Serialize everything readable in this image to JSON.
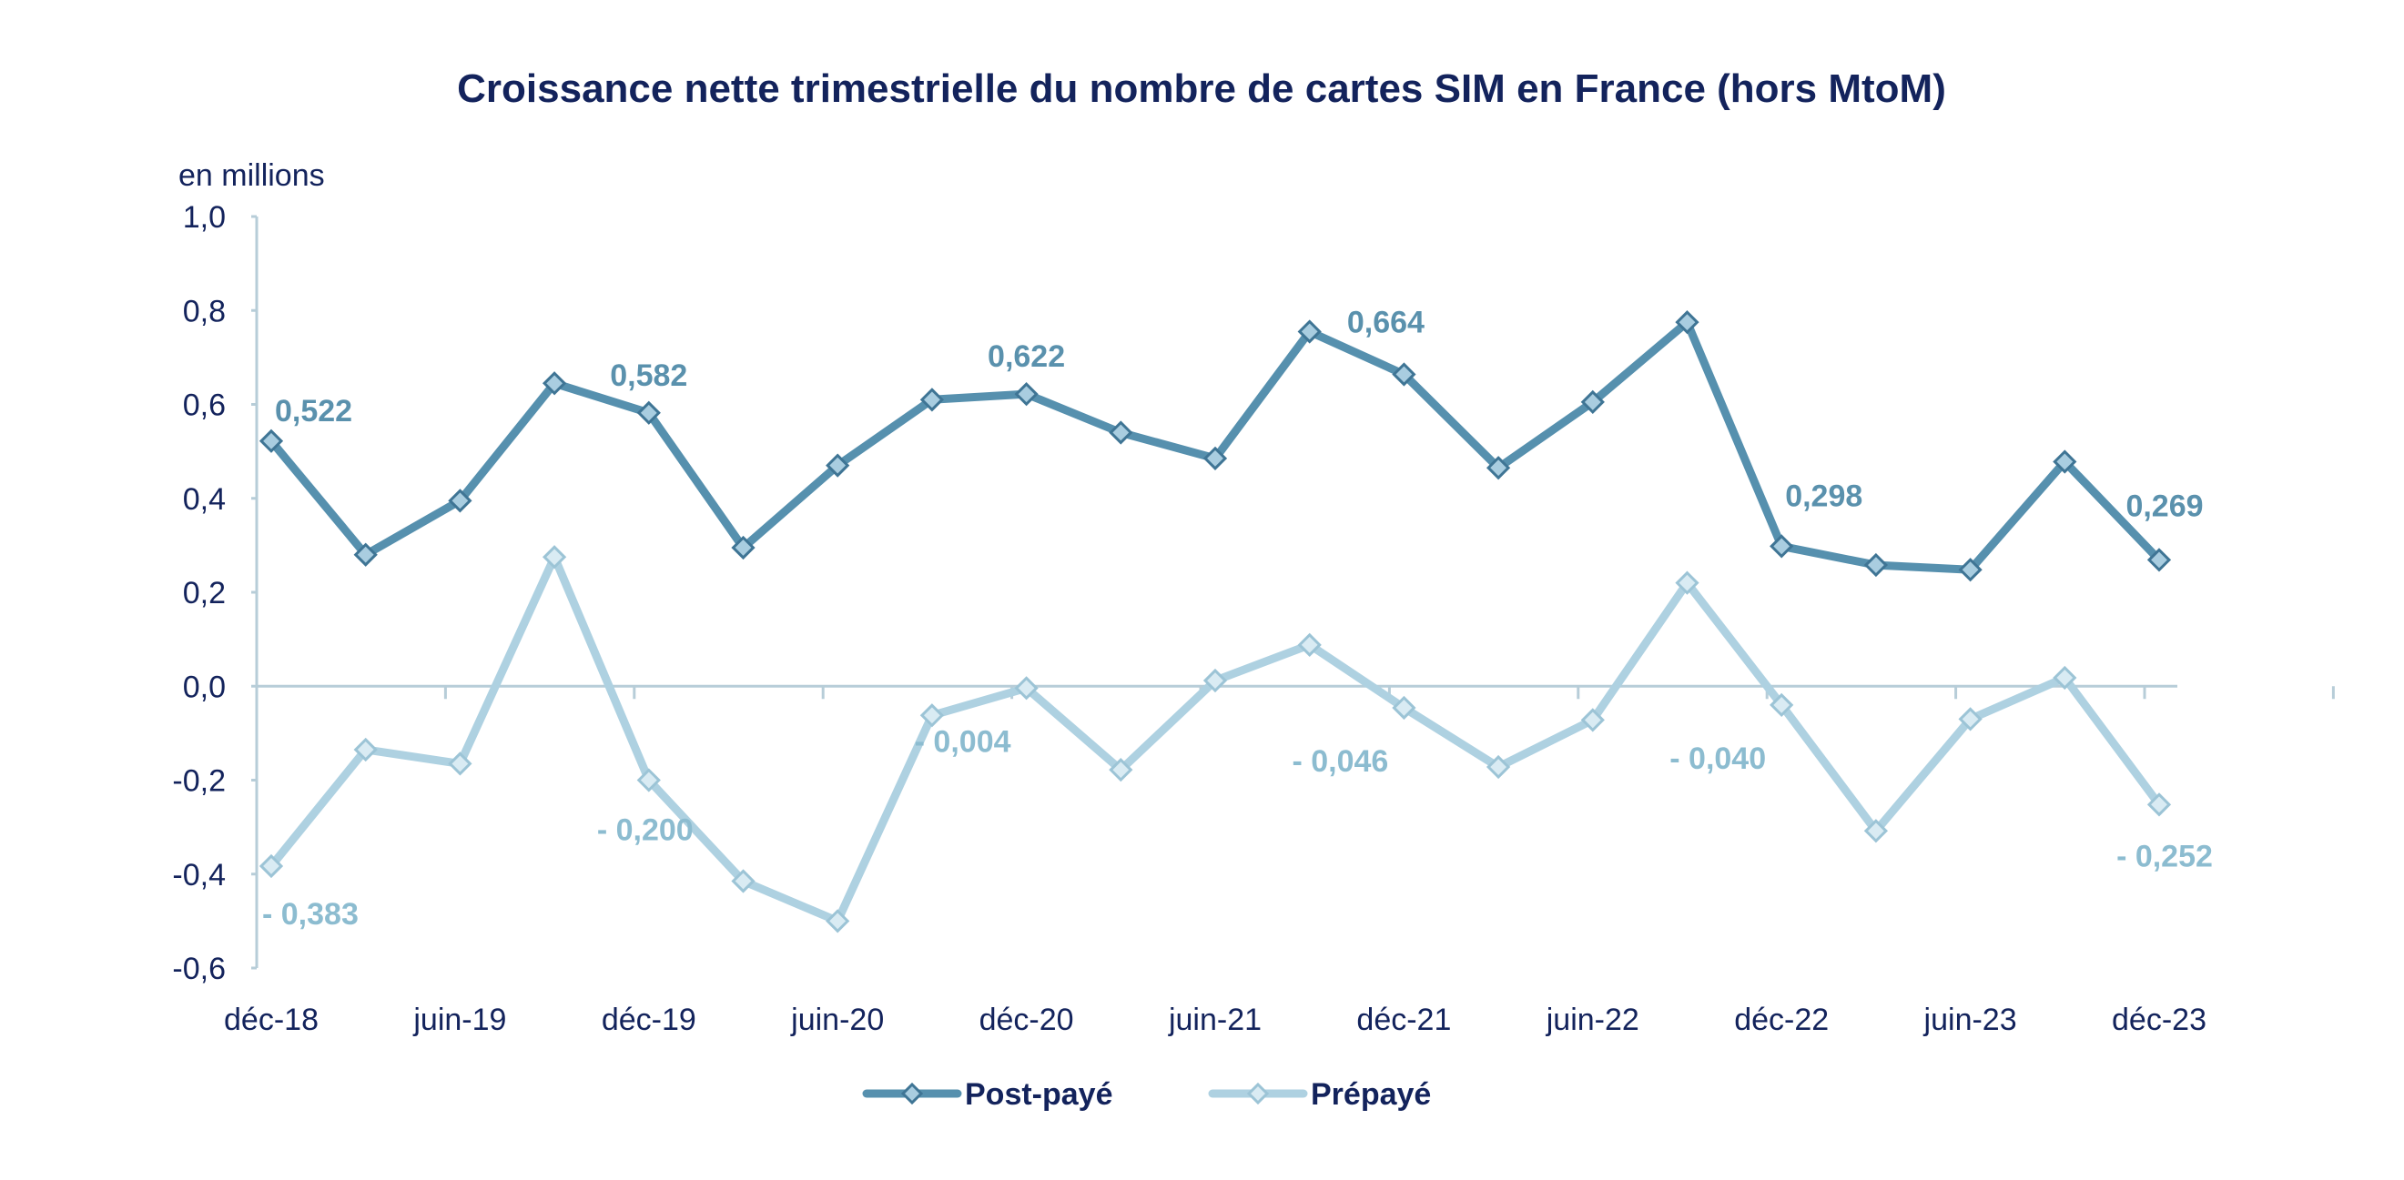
{
  "chart_data": {
    "type": "line",
    "title": "Croissance nette trimestrielle du nombre de cartes SIM en France (hors MtoM)",
    "unit_label": "en millions",
    "ylim": [
      -0.6,
      1.0
    ],
    "yticks": [
      "1,0",
      "0,8",
      "0,6",
      "0,4",
      "0,2",
      "0,0",
      "-0,2",
      "-0,4",
      "-0,6"
    ],
    "ytick_values": [
      1.0,
      0.8,
      0.6,
      0.4,
      0.2,
      0.0,
      -0.2,
      -0.4,
      -0.6
    ],
    "x": [
      "déc-18",
      "mars-19",
      "juin-19",
      "sept-19",
      "déc-19",
      "mars-20",
      "juin-20",
      "sept-20",
      "déc-20",
      "mars-21",
      "juin-21",
      "sept-21",
      "déc-21",
      "mars-22",
      "juin-22",
      "sept-22",
      "déc-22",
      "mars-23",
      "juin-23",
      "sept-23",
      "déc-23"
    ],
    "xtick_labels": [
      "déc-18",
      "juin-19",
      "déc-19",
      "juin-20",
      "déc-20",
      "juin-21",
      "déc-21",
      "juin-22",
      "déc-22",
      "juin-23",
      "déc-23"
    ],
    "xtick_indices": [
      0,
      2,
      4,
      6,
      8,
      10,
      12,
      14,
      16,
      18,
      20
    ],
    "grid": false,
    "legend_position": "bottom",
    "series": [
      {
        "name": "Post-payé",
        "color": "#5690ae",
        "values": [
          0.522,
          0.28,
          0.395,
          0.645,
          0.582,
          0.295,
          0.47,
          0.61,
          0.622,
          0.54,
          0.485,
          0.755,
          0.664,
          0.465,
          0.605,
          0.775,
          0.298,
          0.258,
          0.248,
          0.478,
          0.269
        ],
        "labels": [
          {
            "index": 0,
            "text": "0,522",
            "pos": "above-right"
          },
          {
            "index": 4,
            "text": "0,582",
            "pos": "above"
          },
          {
            "index": 8,
            "text": "0,622",
            "pos": "above"
          },
          {
            "index": 12,
            "text": "0,664",
            "pos": "above-left"
          },
          {
            "index": 16,
            "text": "0,298",
            "pos": "above-right"
          },
          {
            "index": 20,
            "text": "0,269",
            "pos": "above"
          }
        ]
      },
      {
        "name": "Prépayé",
        "color": "#aed1e1",
        "values": [
          -0.383,
          -0.135,
          -0.165,
          0.275,
          -0.2,
          -0.415,
          -0.5,
          -0.062,
          -0.004,
          -0.178,
          0.012,
          0.088,
          -0.046,
          -0.172,
          -0.072,
          0.22,
          -0.04,
          -0.308,
          -0.07,
          0.018,
          -0.252
        ],
        "labels": [
          {
            "index": 0,
            "text": "- 0,383",
            "pos": "below-right"
          },
          {
            "index": 4,
            "text": "- 0,200",
            "pos": "below"
          },
          {
            "index": 8,
            "text": "- 0,004",
            "pos": "below-left"
          },
          {
            "index": 12,
            "text": "- 0,046",
            "pos": "below-left"
          },
          {
            "index": 16,
            "text": "- 0,040",
            "pos": "below-left"
          },
          {
            "index": 20,
            "text": "- 0,252",
            "pos": "below"
          }
        ]
      }
    ]
  }
}
